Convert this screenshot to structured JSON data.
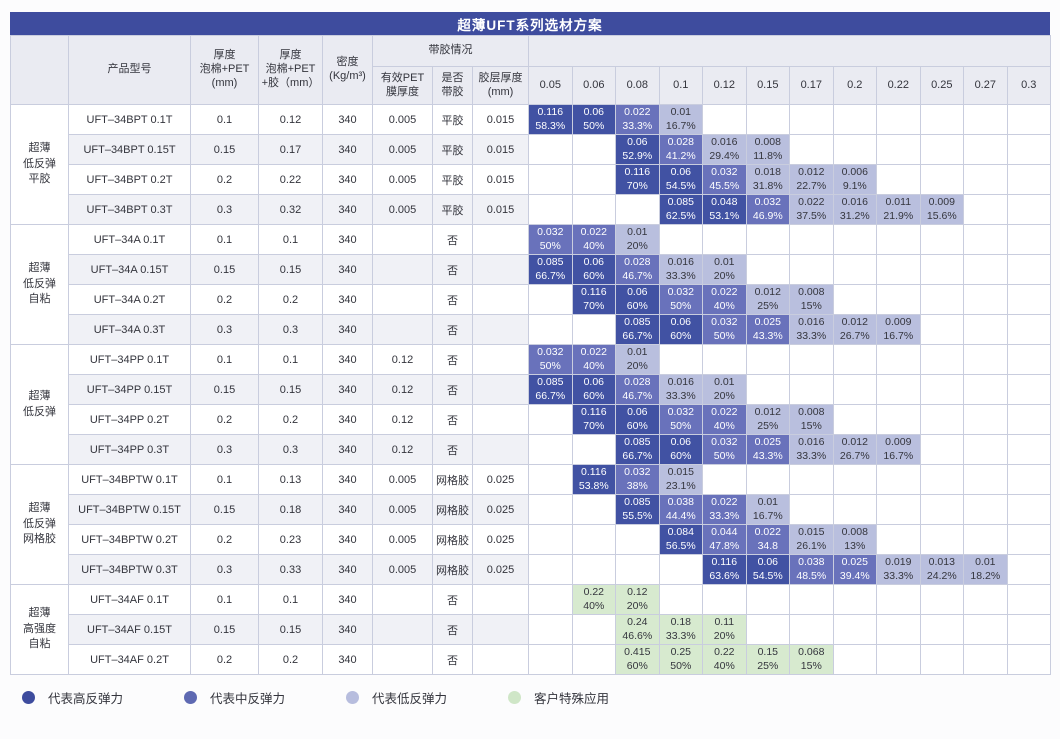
{
  "title": "超薄UFT系列选材方案",
  "colors": {
    "title_bar": "#3E4C9E",
    "high": "#4152A3",
    "mid": "#6972BB",
    "low": "#B9BFDE",
    "special": "#D7EACF"
  },
  "columns": {
    "category": "",
    "model": "产品型号",
    "foam_pet": "厚度\n泡棉+PET\n(mm)",
    "foam_pet_glue": "厚度\n泡棉+PET\n+胶（mm）",
    "density": "密度\n(Kg/m³)",
    "glue_group": "带胶情况",
    "pet_film": "有效PET\n膜厚度",
    "has_glue": "是否\n带胶",
    "glue_thickness": "胶层厚度\n(mm)"
  },
  "value_columns": [
    "0.05",
    "0.06",
    "0.08",
    "0.1",
    "0.12",
    "0.15",
    "0.17",
    "0.2",
    "0.22",
    "0.25",
    "0.27",
    "0.3"
  ],
  "legend": [
    {
      "key": "high",
      "label": "代表高反弹力",
      "color": "#3E4C9E"
    },
    {
      "key": "mid",
      "label": "代表中反弹力",
      "color": "#5E69B2"
    },
    {
      "key": "low",
      "label": "代表低反弹力",
      "color": "#B7BDDE"
    },
    {
      "key": "special",
      "label": "客户特殊应用",
      "color": "#CFE6C7"
    }
  ],
  "groups": [
    {
      "category": "超薄\n低反弹\n平胶",
      "rows": [
        {
          "model": "UFT–34BPT 0.1T",
          "foam_pet": "0.1",
          "foam_pet_glue": "0.12",
          "density": "340",
          "pet_film": "0.005",
          "has_glue": "平胶",
          "glue_thickness": "0.015",
          "cells": {
            "0.05": [
              "0.116",
              "58.3%",
              "high"
            ],
            "0.06": [
              "0.06",
              "50%",
              "high"
            ],
            "0.08": [
              "0.022",
              "33.3%",
              "mid"
            ],
            "0.1": [
              "0.01",
              "16.7%",
              "low"
            ]
          }
        },
        {
          "model": "UFT–34BPT 0.15T",
          "foam_pet": "0.15",
          "foam_pet_glue": "0.17",
          "density": "340",
          "pet_film": "0.005",
          "has_glue": "平胶",
          "glue_thickness": "0.015",
          "cells": {
            "0.08": [
              "0.06",
              "52.9%",
              "high"
            ],
            "0.1": [
              "0.028",
              "41.2%",
              "mid"
            ],
            "0.12": [
              "0.016",
              "29.4%",
              "low"
            ],
            "0.15": [
              "0.008",
              "11.8%",
              "low"
            ]
          }
        },
        {
          "model": "UFT–34BPT 0.2T",
          "foam_pet": "0.2",
          "foam_pet_glue": "0.22",
          "density": "340",
          "pet_film": "0.005",
          "has_glue": "平胶",
          "glue_thickness": "0.015",
          "cells": {
            "0.08": [
              "0.116",
              "70%",
              "high"
            ],
            "0.1": [
              "0.06",
              "54.5%",
              "high"
            ],
            "0.12": [
              "0.032",
              "45.5%",
              "mid"
            ],
            "0.15": [
              "0.018",
              "31.8%",
              "low"
            ],
            "0.17": [
              "0.012",
              "22.7%",
              "low"
            ],
            "0.2": [
              "0.006",
              "9.1%",
              "low"
            ]
          }
        },
        {
          "model": "UFT–34BPT 0.3T",
          "foam_pet": "0.3",
          "foam_pet_glue": "0.32",
          "density": "340",
          "pet_film": "0.005",
          "has_glue": "平胶",
          "glue_thickness": "0.015",
          "cells": {
            "0.1": [
              "0.085",
              "62.5%",
              "high"
            ],
            "0.12": [
              "0.048",
              "53.1%",
              "high"
            ],
            "0.15": [
              "0.032",
              "46.9%",
              "mid"
            ],
            "0.17": [
              "0.022",
              "37.5%",
              "low"
            ],
            "0.2": [
              "0.016",
              "31.2%",
              "low"
            ],
            "0.22": [
              "0.011",
              "21.9%",
              "low"
            ],
            "0.25": [
              "0.009",
              "15.6%",
              "low"
            ]
          }
        }
      ]
    },
    {
      "category": "超薄\n低反弹\n自粘",
      "rows": [
        {
          "model": "UFT–34A 0.1T",
          "foam_pet": "0.1",
          "foam_pet_glue": "0.1",
          "density": "340",
          "pet_film": "",
          "has_glue": "否",
          "glue_thickness": "",
          "cells": {
            "0.05": [
              "0.032",
              "50%",
              "mid"
            ],
            "0.06": [
              "0.022",
              "40%",
              "mid"
            ],
            "0.08": [
              "0.01",
              "20%",
              "low"
            ]
          }
        },
        {
          "model": "UFT–34A 0.15T",
          "foam_pet": "0.15",
          "foam_pet_glue": "0.15",
          "density": "340",
          "pet_film": "",
          "has_glue": "否",
          "glue_thickness": "",
          "cells": {
            "0.05": [
              "0.085",
              "66.7%",
              "high"
            ],
            "0.06": [
              "0.06",
              "60%",
              "high"
            ],
            "0.08": [
              "0.028",
              "46.7%",
              "mid"
            ],
            "0.1": [
              "0.016",
              "33.3%",
              "low"
            ],
            "0.12": [
              "0.01",
              "20%",
              "low"
            ]
          }
        },
        {
          "model": "UFT–34A 0.2T",
          "foam_pet": "0.2",
          "foam_pet_glue": "0.2",
          "density": "340",
          "pet_film": "",
          "has_glue": "否",
          "glue_thickness": "",
          "cells": {
            "0.06": [
              "0.116",
              "70%",
              "high"
            ],
            "0.08": [
              "0.06",
              "60%",
              "high"
            ],
            "0.1": [
              "0.032",
              "50%",
              "mid"
            ],
            "0.12": [
              "0.022",
              "40%",
              "mid"
            ],
            "0.15": [
              "0.012",
              "25%",
              "low"
            ],
            "0.17": [
              "0.008",
              "15%",
              "low"
            ]
          }
        },
        {
          "model": "UFT–34A 0.3T",
          "foam_pet": "0.3",
          "foam_pet_glue": "0.3",
          "density": "340",
          "pet_film": "",
          "has_glue": "否",
          "glue_thickness": "",
          "cells": {
            "0.08": [
              "0.085",
              "66.7%",
              "high"
            ],
            "0.1": [
              "0.06",
              "60%",
              "high"
            ],
            "0.12": [
              "0.032",
              "50%",
              "mid"
            ],
            "0.15": [
              "0.025",
              "43.3%",
              "mid"
            ],
            "0.17": [
              "0.016",
              "33.3%",
              "low"
            ],
            "0.2": [
              "0.012",
              "26.7%",
              "low"
            ],
            "0.22": [
              "0.009",
              "16.7%",
              "low"
            ]
          }
        }
      ]
    },
    {
      "category": "超薄\n低反弹",
      "rows": [
        {
          "model": "UFT–34PP 0.1T",
          "foam_pet": "0.1",
          "foam_pet_glue": "0.1",
          "density": "340",
          "pet_film": "0.12",
          "has_glue": "否",
          "glue_thickness": "",
          "cells": {
            "0.05": [
              "0.032",
              "50%",
              "mid"
            ],
            "0.06": [
              "0.022",
              "40%",
              "mid"
            ],
            "0.08": [
              "0.01",
              "20%",
              "low"
            ]
          }
        },
        {
          "model": "UFT–34PP 0.15T",
          "foam_pet": "0.15",
          "foam_pet_glue": "0.15",
          "density": "340",
          "pet_film": "0.12",
          "has_glue": "否",
          "glue_thickness": "",
          "cells": {
            "0.05": [
              "0.085",
              "66.7%",
              "high"
            ],
            "0.06": [
              "0.06",
              "60%",
              "high"
            ],
            "0.08": [
              "0.028",
              "46.7%",
              "mid"
            ],
            "0.1": [
              "0.016",
              "33.3%",
              "low"
            ],
            "0.12": [
              "0.01",
              "20%",
              "low"
            ]
          }
        },
        {
          "model": "UFT–34PP 0.2T",
          "foam_pet": "0.2",
          "foam_pet_glue": "0.2",
          "density": "340",
          "pet_film": "0.12",
          "has_glue": "否",
          "glue_thickness": "",
          "cells": {
            "0.06": [
              "0.116",
              "70%",
              "high"
            ],
            "0.08": [
              "0.06",
              "60%",
              "high"
            ],
            "0.1": [
              "0.032",
              "50%",
              "mid"
            ],
            "0.12": [
              "0.022",
              "40%",
              "mid"
            ],
            "0.15": [
              "0.012",
              "25%",
              "low"
            ],
            "0.17": [
              "0.008",
              "15%",
              "low"
            ]
          }
        },
        {
          "model": "UFT–34PP 0.3T",
          "foam_pet": "0.3",
          "foam_pet_glue": "0.3",
          "density": "340",
          "pet_film": "0.12",
          "has_glue": "否",
          "glue_thickness": "",
          "cells": {
            "0.08": [
              "0.085",
              "66.7%",
              "high"
            ],
            "0.1": [
              "0.06",
              "60%",
              "high"
            ],
            "0.12": [
              "0.032",
              "50%",
              "mid"
            ],
            "0.15": [
              "0.025",
              "43.3%",
              "mid"
            ],
            "0.17": [
              "0.016",
              "33.3%",
              "low"
            ],
            "0.2": [
              "0.012",
              "26.7%",
              "low"
            ],
            "0.22": [
              "0.009",
              "16.7%",
              "low"
            ]
          }
        }
      ]
    },
    {
      "category": "超薄\n低反弹\n网格胶",
      "rows": [
        {
          "model": "UFT–34BPTW 0.1T",
          "foam_pet": "0.1",
          "foam_pet_glue": "0.13",
          "density": "340",
          "pet_film": "0.005",
          "has_glue": "网格胶",
          "glue_thickness": "0.025",
          "cells": {
            "0.06": [
              "0.116",
              "53.8%",
              "high"
            ],
            "0.08": [
              "0.032",
              "38%",
              "mid"
            ],
            "0.1": [
              "0.015",
              "23.1%",
              "low"
            ]
          }
        },
        {
          "model": "UFT–34BPTW 0.15T",
          "foam_pet": "0.15",
          "foam_pet_glue": "0.18",
          "density": "340",
          "pet_film": "0.005",
          "has_glue": "网格胶",
          "glue_thickness": "0.025",
          "cells": {
            "0.08": [
              "0.085",
              "55.5%",
              "high"
            ],
            "0.1": [
              "0.038",
              "44.4%",
              "mid"
            ],
            "0.12": [
              "0.022",
              "33.3%",
              "mid"
            ],
            "0.15": [
              "0.01",
              "16.7%",
              "low"
            ]
          }
        },
        {
          "model": "UFT–34BPTW 0.2T",
          "foam_pet": "0.2",
          "foam_pet_glue": "0.23",
          "density": "340",
          "pet_film": "0.005",
          "has_glue": "网格胶",
          "glue_thickness": "0.025",
          "cells": {
            "0.1": [
              "0.084",
              "56.5%",
              "high"
            ],
            "0.12": [
              "0.044",
              "47.8%",
              "mid"
            ],
            "0.15": [
              "0.022",
              "34.8",
              "mid"
            ],
            "0.17": [
              "0.015",
              "26.1%",
              "low"
            ],
            "0.2": [
              "0.008",
              "13%",
              "low"
            ]
          }
        },
        {
          "model": "UFT–34BPTW 0.3T",
          "foam_pet": "0.3",
          "foam_pet_glue": "0.33",
          "density": "340",
          "pet_film": "0.005",
          "has_glue": "网格胶",
          "glue_thickness": "0.025",
          "cells": {
            "0.12": [
              "0.116",
              "63.6%",
              "high"
            ],
            "0.15": [
              "0.06",
              "54.5%",
              "high"
            ],
            "0.17": [
              "0.038",
              "48.5%",
              "mid"
            ],
            "0.2": [
              "0.025",
              "39.4%",
              "mid"
            ],
            "0.22": [
              "0.019",
              "33.3%",
              "low"
            ],
            "0.25": [
              "0.013",
              "24.2%",
              "low"
            ],
            "0.27": [
              "0.01",
              "18.2%",
              "low"
            ]
          }
        }
      ]
    },
    {
      "category": "超薄\n高强度\n自粘",
      "rows": [
        {
          "model": "UFT–34AF 0.1T",
          "foam_pet": "0.1",
          "foam_pet_glue": "0.1",
          "density": "340",
          "pet_film": "",
          "has_glue": "否",
          "glue_thickness": "",
          "cells": {
            "0.06": [
              "0.22",
              "40%",
              "special"
            ],
            "0.08": [
              "0.12",
              "20%",
              "special"
            ]
          }
        },
        {
          "model": "UFT–34AF 0.15T",
          "foam_pet": "0.15",
          "foam_pet_glue": "0.15",
          "density": "340",
          "pet_film": "",
          "has_glue": "否",
          "glue_thickness": "",
          "cells": {
            "0.08": [
              "0.24",
              "46.6%",
              "special"
            ],
            "0.1": [
              "0.18",
              "33.3%",
              "special"
            ],
            "0.12": [
              "0.11",
              "20%",
              "special"
            ]
          }
        },
        {
          "model": "UFT–34AF 0.2T",
          "foam_pet": "0.2",
          "foam_pet_glue": "0.2",
          "density": "340",
          "pet_film": "",
          "has_glue": "否",
          "glue_thickness": "",
          "cells": {
            "0.08": [
              "0.415",
              "60%",
              "special"
            ],
            "0.1": [
              "0.25",
              "50%",
              "special"
            ],
            "0.12": [
              "0.22",
              "40%",
              "special"
            ],
            "0.15": [
              "0.15",
              "25%",
              "special"
            ],
            "0.17": [
              "0.068",
              "15%",
              "special"
            ]
          }
        }
      ]
    }
  ]
}
